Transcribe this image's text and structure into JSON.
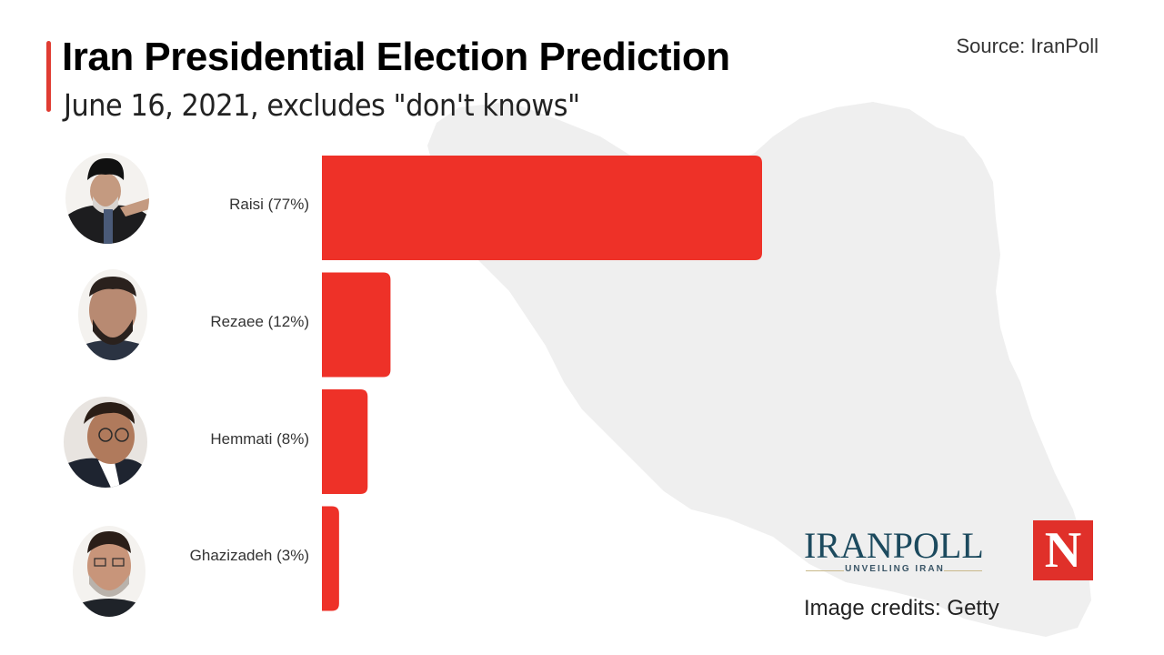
{
  "header": {
    "title": "Iran Presidential Election Prediction",
    "subtitle": "June 16, 2021, excludes \"don't knows\"",
    "source": "Source: IranPoll"
  },
  "colors": {
    "bar": "#ee3128",
    "accent": "#e03c32",
    "map": "#efefef",
    "newsweek": "#e0302a",
    "iranpoll": "#1c4a5e"
  },
  "chart_data": {
    "type": "bar",
    "orientation": "horizontal",
    "title": "Iran Presidential Election Prediction",
    "subtitle": "June 16, 2021, excludes \"don't knows\"",
    "categories": [
      "Raisi",
      "Rezaee",
      "Hemmati",
      "Ghazizadeh"
    ],
    "labels": [
      "Raisi (77%)",
      "Rezaee (12%)",
      "Hemmati (8%)",
      "Ghazizadeh (3%)"
    ],
    "values": [
      77,
      12,
      8,
      3
    ],
    "unit": "%",
    "xlim": [
      0,
      77
    ],
    "grid": false,
    "legend": "none"
  },
  "candidates": [
    {
      "name": "Raisi",
      "photo": "raisi-photo"
    },
    {
      "name": "Rezaee",
      "photo": "rezaee-photo"
    },
    {
      "name": "Hemmati",
      "photo": "hemmati-photo"
    },
    {
      "name": "Ghazizadeh",
      "photo": "ghazizadeh-photo"
    }
  ],
  "footer": {
    "iranpoll_name": "IRANPOLL",
    "iranpoll_tagline": "UNVEILING IRAN",
    "newsweek_letter": "N",
    "credits": "Image credits: Getty"
  }
}
